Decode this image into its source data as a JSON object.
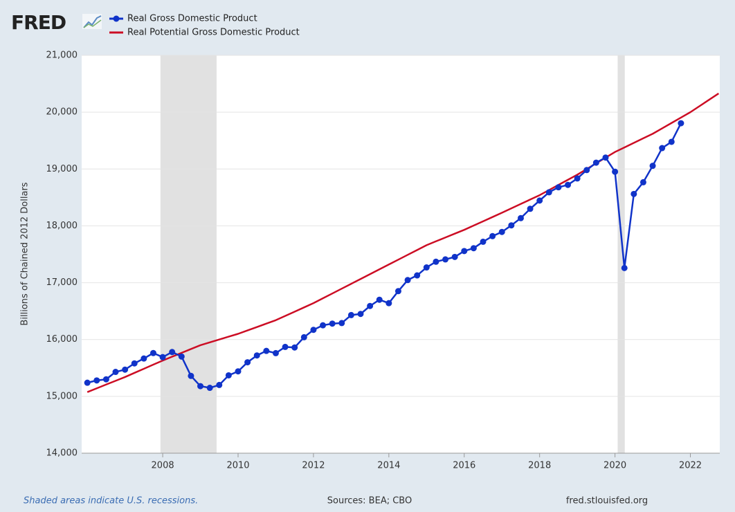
{
  "brand": "FRED",
  "chart_data": {
    "type": "line",
    "y_label": "Billions of Chained 2012 Dollars",
    "x": [
      2006,
      2006.25,
      2006.5,
      2006.75,
      2007,
      2007.25,
      2007.5,
      2007.75,
      2008,
      2008.25,
      2008.5,
      2008.75,
      2009,
      2009.25,
      2009.5,
      2009.75,
      2010,
      2010.25,
      2010.5,
      2010.75,
      2011,
      2011.25,
      2011.5,
      2011.75,
      2012,
      2012.25,
      2012.5,
      2012.75,
      2013,
      2013.25,
      2013.5,
      2013.75,
      2014,
      2014.25,
      2014.5,
      2014.75,
      2015,
      2015.25,
      2015.5,
      2015.75,
      2016,
      2016.25,
      2016.5,
      2016.75,
      2017,
      2017.25,
      2017.5,
      2017.75,
      2018,
      2018.25,
      2018.5,
      2018.75,
      2019,
      2019.25,
      2019.5,
      2019.75,
      2020,
      2020.25,
      2020.5,
      2020.75,
      2021,
      2021.25,
      2021.5,
      2021.75,
      2022,
      2022.25,
      2022.5,
      2022.75
    ],
    "series": [
      {
        "name": "Real Gross Domestic Product",
        "color": "#1033c9",
        "markers": true,
        "values": [
          15240,
          15280,
          15300,
          15430,
          15470,
          15580,
          15666,
          15762,
          15690,
          15780,
          15700,
          15360,
          15180,
          15150,
          15200,
          15370,
          15440,
          15600,
          15720,
          15800,
          15760,
          15870,
          15860,
          16040,
          16170,
          16250,
          16280,
          16290,
          16430,
          16450,
          16590,
          16700,
          16640,
          16851,
          17046,
          17128,
          17268,
          17369,
          17410,
          17453,
          17557,
          17607,
          17720,
          17819,
          17893,
          18009,
          18136,
          18300,
          18445,
          18591,
          18679,
          18721,
          18834,
          18982,
          19112,
          19202,
          18952,
          17258,
          18561,
          18767,
          19056,
          19368,
          19479,
          19806,
          null,
          null,
          null,
          null
        ]
      },
      {
        "name": "Real Potential Gross Domestic Product",
        "color": "#cc0d24",
        "markers": false,
        "values": [
          15075,
          15141,
          15208,
          15274,
          15340,
          15413,
          15485,
          15558,
          15630,
          15698,
          15765,
          15833,
          15900,
          15950,
          16000,
          16050,
          16100,
          16160,
          16220,
          16280,
          16340,
          16415,
          16490,
          16565,
          16640,
          16725,
          16810,
          16895,
          16980,
          17065,
          17150,
          17235,
          17320,
          17405,
          17490,
          17575,
          17660,
          17728,
          17795,
          17863,
          17930,
          18005,
          18080,
          18155,
          18230,
          18308,
          18385,
          18463,
          18540,
          18630,
          18720,
          18810,
          18900,
          19000,
          19100,
          19200,
          19300,
          19380,
          19460,
          19540,
          19620,
          19715,
          19810,
          19905,
          20000,
          20110,
          20220,
          20330
        ]
      }
    ],
    "recessions": [
      [
        2007.94,
        2009.43
      ],
      [
        2020.07,
        2020.26
      ]
    ],
    "xlim": [
      2005.85,
      2022.78
    ],
    "xticks": [
      2008,
      2010,
      2012,
      2014,
      2016,
      2018,
      2020,
      2022
    ],
    "ylim": [
      14000,
      21000
    ],
    "yticks": [
      {
        "value": 14000,
        "label": "14,000"
      },
      {
        "value": 15000,
        "label": "15,000"
      },
      {
        "value": 16000,
        "label": "16,000"
      },
      {
        "value": 17000,
        "label": "17,000"
      },
      {
        "value": 18000,
        "label": "18,000"
      },
      {
        "value": 19000,
        "label": "19,000"
      },
      {
        "value": 20000,
        "label": "20,000"
      },
      {
        "value": 21000,
        "label": "21,000"
      }
    ],
    "grid": true
  },
  "footer": {
    "note": "Shaded areas indicate U.S. recessions.",
    "sources": "Sources: BEA; CBO",
    "site": "fred.stlouisfed.org"
  }
}
